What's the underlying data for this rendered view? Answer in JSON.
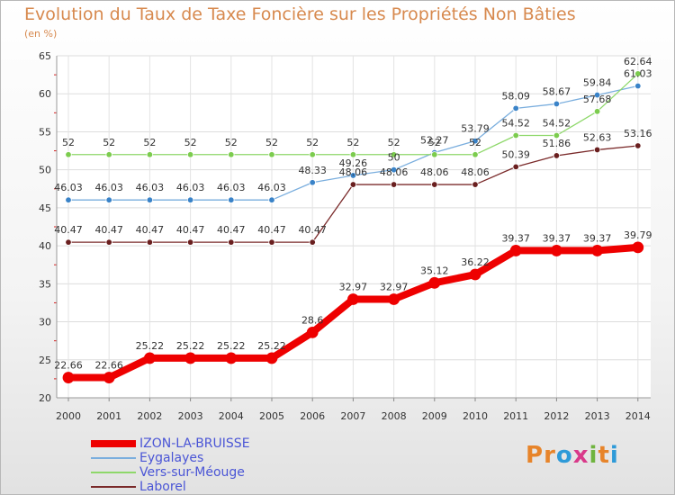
{
  "title": "Evolution du Taux de Taxe Foncière sur les Propriétés Non Bâties",
  "subtitle": "(en %)",
  "logo": {
    "text": "Proxiti",
    "letter_colors": [
      "#e7842a",
      "#e7842a",
      "#2e9ad8",
      "#d93a8a",
      "#6fb43f",
      "#e7842a",
      "#2e9ad8"
    ]
  },
  "chart_data": {
    "type": "line",
    "title": "Evolution du Taux de Taxe Foncière sur les Propriétés Non Bâties",
    "ylabel": "(en %)",
    "xlabel": "",
    "x": [
      "2000",
      "2001",
      "2002",
      "2003",
      "2004",
      "2005",
      "2006",
      "2007",
      "2008",
      "2009",
      "2010",
      "2011",
      "2012",
      "2013",
      "2014"
    ],
    "ylim": [
      20,
      65
    ],
    "yticks": [
      "20",
      "25",
      "30",
      "35",
      "40",
      "45",
      "50",
      "55",
      "60",
      "65"
    ],
    "grid": true,
    "legend_position": "bottom-left",
    "series": [
      {
        "name": "IZON-LA-BRUISSE",
        "color": "#ee0000",
        "values": [
          22.66,
          22.66,
          25.22,
          25.22,
          25.22,
          25.22,
          28.6,
          32.97,
          32.97,
          35.12,
          36.22,
          39.37,
          39.37,
          39.37,
          39.79
        ],
        "labels": [
          "22.66",
          "22.66",
          "25.22",
          "25.22",
          "25.22",
          "25.22",
          "28.6",
          "32.97",
          "32.97",
          "35.12",
          "36.22",
          "39.37",
          "39.37",
          "39.37",
          "39.79"
        ]
      },
      {
        "name": "Eygalayes",
        "color": "#7aaede",
        "values": [
          46.03,
          46.03,
          46.03,
          46.03,
          46.03,
          46.03,
          48.33,
          49.26,
          50,
          52.27,
          53.79,
          58.09,
          58.67,
          59.84,
          61.03
        ],
        "labels": [
          "46.03",
          "46.03",
          "46.03",
          "46.03",
          "46.03",
          "46.03",
          "48.33",
          "49.26",
          "50",
          "52.27",
          "53.79",
          "58.09",
          "58.67",
          "59.84",
          "61.03"
        ]
      },
      {
        "name": "Vers-sur-Méouge",
        "color": "#8ed86a",
        "values": [
          52,
          52,
          52,
          52,
          52,
          52,
          52,
          52,
          52,
          52,
          52,
          54.52,
          54.52,
          57.68,
          62.64
        ],
        "labels": [
          "52",
          "52",
          "52",
          "52",
          "52",
          "52",
          "52",
          "52",
          "52",
          "52",
          "52",
          "54.52",
          "54.52",
          "57.68",
          "62.64"
        ]
      },
      {
        "name": "Laborel",
        "color": "#7a2a2a",
        "values": [
          40.47,
          40.47,
          40.47,
          40.47,
          40.47,
          40.47,
          40.47,
          48.06,
          48.06,
          48.06,
          48.06,
          50.39,
          51.86,
          52.63,
          53.16
        ],
        "labels": [
          "40.47",
          "40.47",
          "40.47",
          "40.47",
          "40.47",
          "40.47",
          "40.47",
          "48.06",
          "48.06",
          "48.06",
          "48.06",
          "50.39",
          "51.86",
          "52.63",
          "53.16"
        ]
      }
    ]
  }
}
